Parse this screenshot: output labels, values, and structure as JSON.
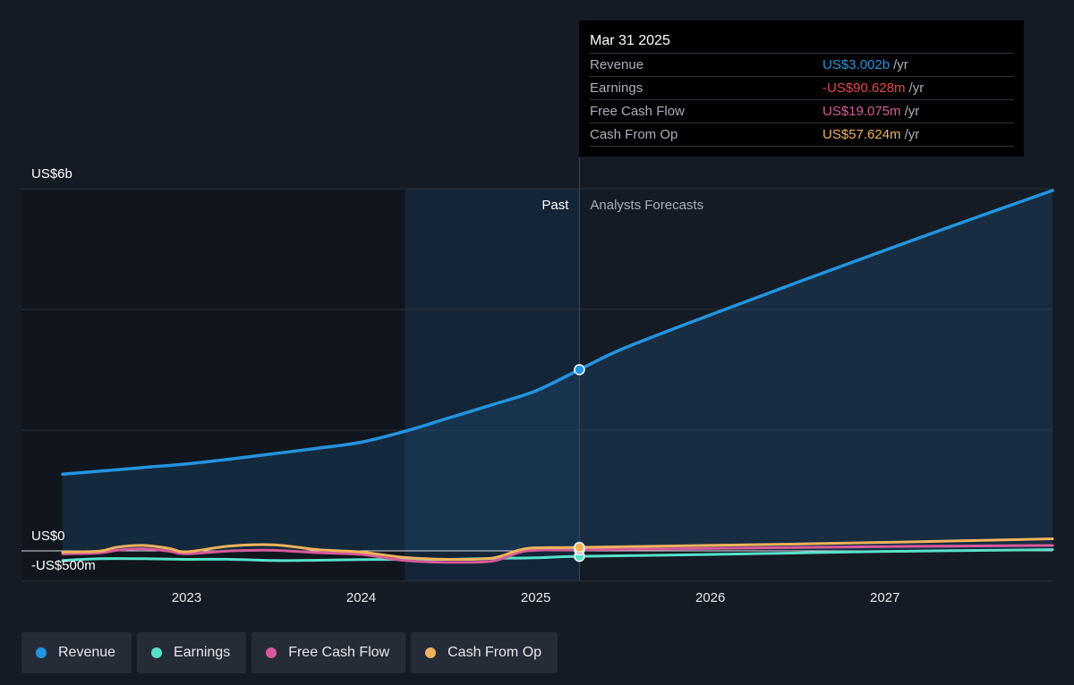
{
  "tooltip": {
    "date": "Mar 31 2025",
    "rows": [
      {
        "label": "Revenue",
        "value": "US$3.002b",
        "unit": "/yr",
        "color": "#2394df"
      },
      {
        "label": "Earnings",
        "value": "-US$90.628m",
        "unit": "/yr",
        "color": "#e64848"
      },
      {
        "label": "Free Cash Flow",
        "value": "US$19.075m",
        "unit": "/yr",
        "color": "#d65a9a"
      },
      {
        "label": "Cash From Op",
        "value": "US$57.624m",
        "unit": "/yr",
        "color": "#f0b35e"
      }
    ]
  },
  "legend": [
    {
      "label": "Revenue",
      "color": "#2394df"
    },
    {
      "label": "Earnings",
      "color": "#58e1c9"
    },
    {
      "label": "Free Cash Flow",
      "color": "#d65a9a"
    },
    {
      "label": "Cash From Op",
      "color": "#f0b35e"
    }
  ],
  "chart_data": {
    "type": "line",
    "y_labels": [
      "US$6b",
      "US$0",
      "-US$500m"
    ],
    "ylim": [
      -500,
      6000
    ],
    "y_unit": "US$m",
    "x_ticks": [
      "2023",
      "2024",
      "2025",
      "2026",
      "2027"
    ],
    "xlim": [
      2022.29,
      2027.96
    ],
    "past_label": "Past",
    "forecast_label": "Analysts Forecasts",
    "highlight_range": [
      2024.25,
      2025.25
    ],
    "current_x": 2025.25,
    "series": [
      {
        "name": "Revenue",
        "color": "#2394df",
        "area": true,
        "points": [
          [
            2022.29,
            1270
          ],
          [
            2022.5,
            1320
          ],
          [
            2022.75,
            1380
          ],
          [
            2023.0,
            1440
          ],
          [
            2023.25,
            1520
          ],
          [
            2023.5,
            1610
          ],
          [
            2023.75,
            1700
          ],
          [
            2024.0,
            1800
          ],
          [
            2024.25,
            1980
          ],
          [
            2024.5,
            2200
          ],
          [
            2024.75,
            2420
          ],
          [
            2025.0,
            2650
          ],
          [
            2025.25,
            3002
          ],
          [
            2025.5,
            3350
          ],
          [
            2026.0,
            3910
          ],
          [
            2026.5,
            4450
          ],
          [
            2027.0,
            4980
          ],
          [
            2027.5,
            5500
          ],
          [
            2027.96,
            5970
          ]
        ]
      },
      {
        "name": "Earnings",
        "color": "#58e1c9",
        "points": [
          [
            2022.29,
            -160
          ],
          [
            2022.5,
            -130
          ],
          [
            2022.75,
            -130
          ],
          [
            2023.0,
            -140
          ],
          [
            2023.25,
            -140
          ],
          [
            2023.5,
            -160
          ],
          [
            2023.75,
            -155
          ],
          [
            2024.0,
            -145
          ],
          [
            2024.25,
            -140
          ],
          [
            2024.5,
            -140
          ],
          [
            2024.75,
            -125
          ],
          [
            2025.0,
            -115
          ],
          [
            2025.25,
            -90.628
          ],
          [
            2026.0,
            -60
          ],
          [
            2027.0,
            -10
          ],
          [
            2027.96,
            20
          ]
        ]
      },
      {
        "name": "Free Cash Flow",
        "color": "#d65a9a",
        "points": [
          [
            2022.29,
            -50
          ],
          [
            2022.5,
            -35
          ],
          [
            2022.6,
            10
          ],
          [
            2022.75,
            35
          ],
          [
            2022.9,
            -5
          ],
          [
            2023.0,
            -50
          ],
          [
            2023.25,
            0
          ],
          [
            2023.5,
            10
          ],
          [
            2023.75,
            -30
          ],
          [
            2024.0,
            -60
          ],
          [
            2024.25,
            -160
          ],
          [
            2024.5,
            -190
          ],
          [
            2024.75,
            -170
          ],
          [
            2024.9,
            -30
          ],
          [
            2025.0,
            10
          ],
          [
            2025.25,
            19.075
          ],
          [
            2026.0,
            40
          ],
          [
            2027.0,
            70
          ],
          [
            2027.96,
            90
          ]
        ]
      },
      {
        "name": "Cash From Op",
        "color": "#f0b35e",
        "points": [
          [
            2022.29,
            -20
          ],
          [
            2022.5,
            -5
          ],
          [
            2022.6,
            60
          ],
          [
            2022.75,
            90
          ],
          [
            2022.9,
            40
          ],
          [
            2023.0,
            -15
          ],
          [
            2023.25,
            80
          ],
          [
            2023.5,
            100
          ],
          [
            2023.75,
            20
          ],
          [
            2024.0,
            -20
          ],
          [
            2024.25,
            -110
          ],
          [
            2024.5,
            -140
          ],
          [
            2024.75,
            -120
          ],
          [
            2024.9,
            10
          ],
          [
            2025.0,
            50
          ],
          [
            2025.25,
            57.624
          ],
          [
            2026.0,
            90
          ],
          [
            2027.0,
            140
          ],
          [
            2027.96,
            200
          ]
        ]
      }
    ]
  }
}
